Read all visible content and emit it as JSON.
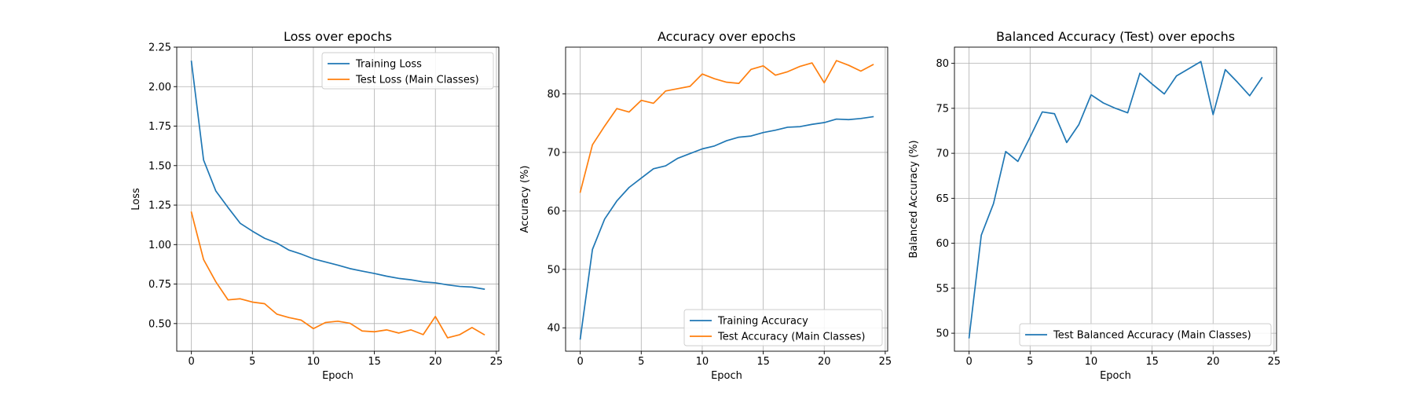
{
  "chart_data": [
    {
      "type": "line",
      "title": "Loss over epochs",
      "xlabel": "Epoch",
      "ylabel": "Loss",
      "xlim": [
        -1.2,
        25.2
      ],
      "ylim": [
        0.325,
        2.25
      ],
      "xticks": [
        0,
        5,
        10,
        15,
        20,
        25
      ],
      "yticks": [
        0.5,
        0.75,
        1.0,
        1.25,
        1.5,
        1.75,
        2.0,
        2.25
      ],
      "yticklabels": [
        "0.50",
        "0.75",
        "1.00",
        "1.25",
        "1.50",
        "1.75",
        "2.00",
        "2.25"
      ],
      "grid": true,
      "legend_position": "top-right",
      "x": [
        0,
        1,
        2,
        3,
        4,
        5,
        6,
        7,
        8,
        9,
        10,
        11,
        12,
        13,
        14,
        15,
        16,
        17,
        18,
        19,
        20,
        21,
        22,
        23,
        24
      ],
      "series": [
        {
          "name": "Training Loss",
          "color": "#1f77b4",
          "values": [
            2.16,
            1.535,
            1.34,
            1.235,
            1.135,
            1.085,
            1.04,
            1.01,
            0.965,
            0.94,
            0.91,
            0.89,
            0.87,
            0.848,
            0.832,
            0.817,
            0.8,
            0.786,
            0.777,
            0.764,
            0.758,
            0.745,
            0.735,
            0.731,
            0.718
          ]
        },
        {
          "name": "Test Loss (Main Classes)",
          "color": "#ff7f0e",
          "values": [
            1.205,
            0.905,
            0.765,
            0.65,
            0.657,
            0.636,
            0.626,
            0.56,
            0.538,
            0.522,
            0.468,
            0.507,
            0.515,
            0.502,
            0.453,
            0.448,
            0.46,
            0.44,
            0.46,
            0.43,
            0.545,
            0.41,
            0.43,
            0.475,
            0.43
          ]
        }
      ]
    },
    {
      "type": "line",
      "title": "Accuracy over epochs",
      "xlabel": "Epoch",
      "ylabel": "Accuracy (%)",
      "xlim": [
        -1.2,
        25.2
      ],
      "ylim": [
        36.0,
        88.0
      ],
      "xticks": [
        0,
        5,
        10,
        15,
        20,
        25
      ],
      "yticks": [
        40,
        50,
        60,
        70,
        80
      ],
      "yticklabels": [
        "40",
        "50",
        "60",
        "70",
        "80"
      ],
      "grid": true,
      "legend_position": "bottom-right",
      "x": [
        0,
        1,
        2,
        3,
        4,
        5,
        6,
        7,
        8,
        9,
        10,
        11,
        12,
        13,
        14,
        15,
        16,
        17,
        18,
        19,
        20,
        21,
        22,
        23,
        24
      ],
      "series": [
        {
          "name": "Training Accuracy",
          "color": "#1f77b4",
          "values": [
            38.1,
            53.4,
            58.6,
            61.7,
            64.0,
            65.6,
            67.2,
            67.7,
            69.0,
            69.8,
            70.6,
            71.1,
            72.0,
            72.6,
            72.8,
            73.4,
            73.8,
            74.3,
            74.4,
            74.8,
            75.1,
            75.7,
            75.6,
            75.8,
            76.1
          ]
        },
        {
          "name": "Test Accuracy (Main Classes)",
          "color": "#ff7f0e",
          "values": [
            63.2,
            71.3,
            74.5,
            77.5,
            76.9,
            78.9,
            78.4,
            80.5,
            80.9,
            81.3,
            83.4,
            82.6,
            82.0,
            81.8,
            84.2,
            84.8,
            83.2,
            83.8,
            84.7,
            85.3,
            81.9,
            85.7,
            84.9,
            83.9,
            85.0
          ]
        }
      ]
    },
    {
      "type": "line",
      "title": "Balanced Accuracy (Test) over epochs",
      "xlabel": "Epoch",
      "ylabel": "Balanced Accuracy (%)",
      "xlim": [
        -1.2,
        25.2
      ],
      "ylim": [
        48.0,
        81.8
      ],
      "xticks": [
        0,
        5,
        10,
        15,
        20,
        25
      ],
      "yticks": [
        50,
        55,
        60,
        65,
        70,
        75,
        80
      ],
      "yticklabels": [
        "50",
        "55",
        "60",
        "65",
        "70",
        "75",
        "80"
      ],
      "grid": true,
      "legend_position": "bottom-right",
      "x": [
        0,
        1,
        2,
        3,
        4,
        5,
        6,
        7,
        8,
        9,
        10,
        11,
        12,
        13,
        14,
        15,
        16,
        17,
        18,
        19,
        20,
        21,
        22,
        23,
        24
      ],
      "series": [
        {
          "name": "Test Balanced Accuracy (Main Classes)",
          "color": "#1f77b4",
          "values": [
            49.5,
            60.9,
            64.4,
            70.2,
            69.1,
            71.8,
            74.6,
            74.4,
            71.2,
            73.2,
            76.5,
            75.6,
            75.0,
            74.5,
            78.9,
            77.7,
            76.6,
            78.6,
            79.4,
            80.2,
            74.3,
            79.3,
            77.9,
            76.4,
            78.4
          ]
        }
      ]
    }
  ]
}
